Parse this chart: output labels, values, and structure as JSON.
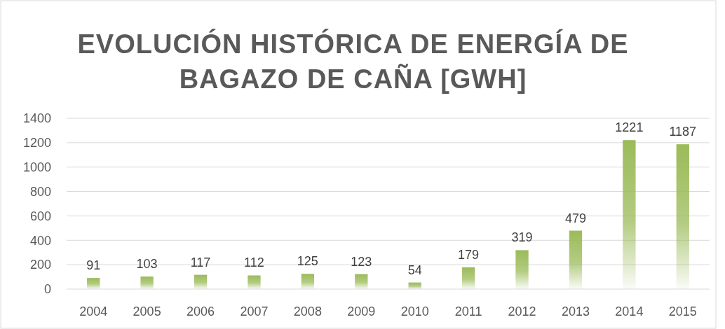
{
  "chart_data": {
    "type": "bar",
    "title": "EVOLUCIÓN HISTÓRICA DE ENERGÍA DE BAGAZO DE CAÑA [GWH]",
    "categories": [
      "2004",
      "2005",
      "2006",
      "2007",
      "2008",
      "2009",
      "2010",
      "2011",
      "2012",
      "2013",
      "2014",
      "2015"
    ],
    "values": [
      91,
      103,
      117,
      112,
      125,
      123,
      54,
      179,
      319,
      479,
      1221,
      1187
    ],
    "color": "#9bbb59",
    "ylim": [
      0,
      1400
    ],
    "yticks": [
      0,
      200,
      400,
      600,
      800,
      1000,
      1200,
      1400
    ],
    "grid": "y",
    "data_labels": true
  }
}
